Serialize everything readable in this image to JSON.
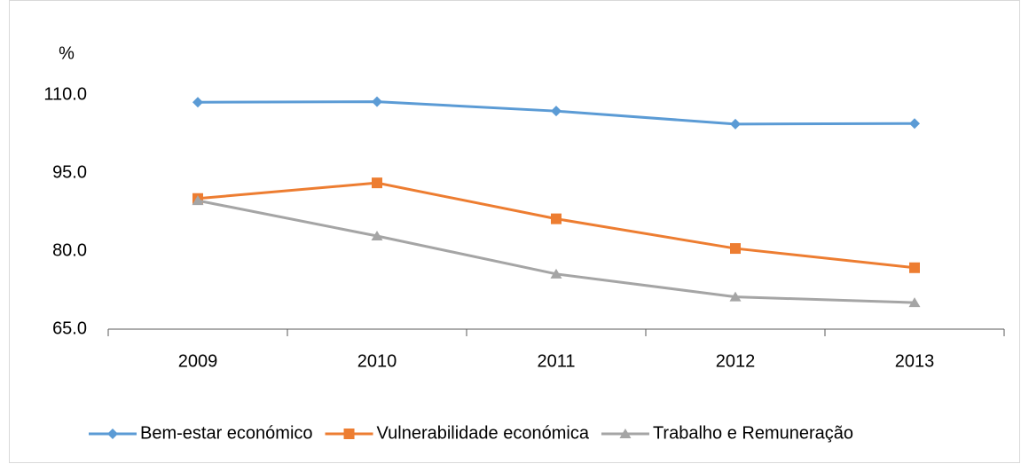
{
  "chart_data": {
    "type": "line",
    "y_axis_label": "%",
    "categories": [
      "2009",
      "2010",
      "2011",
      "2012",
      "2013"
    ],
    "series": [
      {
        "name": "Bem-estar económico",
        "color": "#5b9bd5",
        "marker": "diamond",
        "values": [
          108.6,
          108.7,
          106.9,
          104.4,
          104.5
        ]
      },
      {
        "name": "Vulnerabilidade económica",
        "color": "#ed7d31",
        "marker": "square",
        "values": [
          90.1,
          93.1,
          86.2,
          80.5,
          76.8
        ]
      },
      {
        "name": "Trabalho e Remuneração",
        "color": "#a5a5a5",
        "marker": "triangle",
        "values": [
          89.7,
          82.9,
          75.6,
          71.2,
          70.1
        ]
      }
    ],
    "ylim": [
      65,
      110
    ],
    "yticks": [
      {
        "value": 65,
        "label": "65.0"
      },
      {
        "value": 80,
        "label": "80.0"
      },
      {
        "value": 95,
        "label": "95.0"
      },
      {
        "value": 110,
        "label": "110.0"
      }
    ],
    "grid": false,
    "legend": "bottom"
  }
}
